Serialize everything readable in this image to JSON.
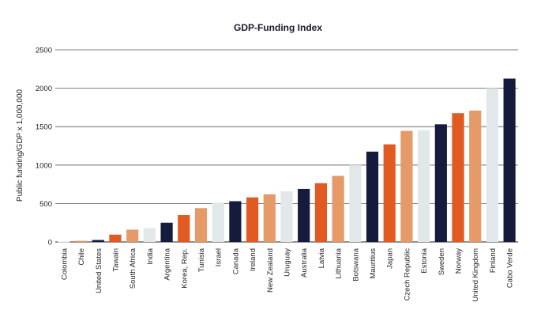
{
  "chart_data": {
    "type": "bar",
    "title": "GDP-Funding Index",
    "xlabel": "",
    "ylabel": "Public funding/GDP x 1,000,000",
    "ylim": [
      0,
      2500
    ],
    "yticks": [
      0,
      500,
      1000,
      1500,
      2000,
      2500
    ],
    "grid": true,
    "categories": [
      "Colombia",
      "Chile",
      "United States",
      "Tawain",
      "South Africa",
      "India",
      "Argentina",
      "Korea, Rep.",
      "Tunisia",
      "Israel",
      "Canada",
      "Ireland",
      "New Zealand",
      "Uruguay",
      "Australia",
      "Latvia",
      "Lithuania",
      "Botswana",
      "Mauritius",
      "Japan",
      "Czech Republic",
      "Estonia",
      "Sweden",
      "Norway",
      "United Kingdom",
      "Finland",
      "Cabo Verde"
    ],
    "values": [
      5,
      15,
      25,
      95,
      160,
      180,
      250,
      350,
      440,
      510,
      530,
      580,
      620,
      660,
      690,
      765,
      860,
      1000,
      1175,
      1270,
      1445,
      1455,
      1530,
      1675,
      1710,
      2000,
      2125
    ],
    "colors": [
      "#e2e8ea",
      "#e59a68",
      "#141b3d",
      "#e05a22",
      "#e59a68",
      "#e2e8ea",
      "#141b3d",
      "#e05a22",
      "#e59a68",
      "#e2e8ea",
      "#141b3d",
      "#e05a22",
      "#e59a68",
      "#e2e8ea",
      "#141b3d",
      "#e05a22",
      "#e59a68",
      "#e2e8ea",
      "#141b3d",
      "#e05a22",
      "#e59a68",
      "#e2e8ea",
      "#141b3d",
      "#e05a22",
      "#e59a68",
      "#e2e8ea",
      "#141b3d"
    ]
  }
}
